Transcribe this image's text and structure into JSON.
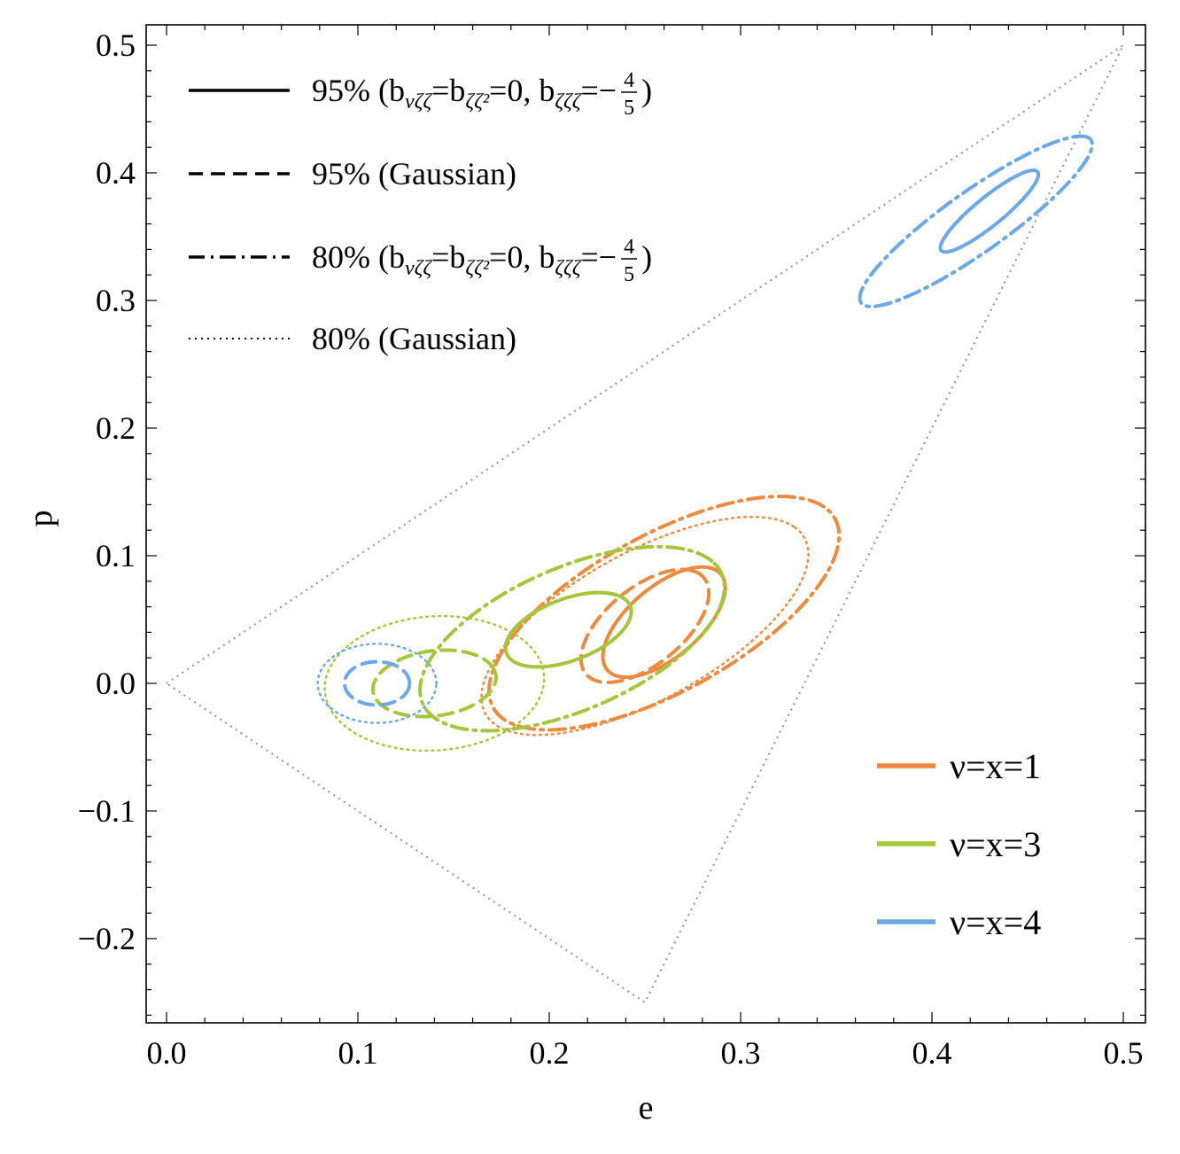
{
  "chart_data": {
    "type": "line",
    "title": "",
    "xlabel": "e",
    "ylabel": "p",
    "xlim": [
      -0.01,
      0.51
    ],
    "ylim": [
      -0.26,
      0.515
    ],
    "grid": false,
    "xticks": [
      0.0,
      0.1,
      0.2,
      0.3,
      0.4,
      0.5
    ],
    "xtick_labels": [
      "0.0",
      "0.1",
      "0.2",
      "0.3",
      "0.4",
      "0.5"
    ],
    "yticks": [
      -0.2,
      -0.1,
      0.0,
      0.1,
      0.2,
      0.3,
      0.4,
      0.5
    ],
    "ytick_labels": [
      "−0.2",
      "−0.1",
      "0.0",
      "0.1",
      "0.2",
      "0.3",
      "0.4",
      "0.5"
    ],
    "boundary": {
      "name": "allowed region",
      "style": "dotted",
      "color": "#999999",
      "points": [
        [
          0.0,
          0.0
        ],
        [
          0.5,
          0.5
        ],
        [
          0.25,
          -0.25
        ],
        [
          0.0,
          0.0
        ]
      ]
    },
    "style_legend": {
      "position": "top-left",
      "entries": [
        {
          "style": "solid",
          "prefix": "95% (b",
          "sub1": "νζζ",
          "mid": "=b",
          "sub2": "ζζ²",
          "mid2": "=0, b",
          "sub3": "ζζζ",
          "suffix": "=−",
          "frac_num": "4",
          "frac_den": "5",
          "close": ")"
        },
        {
          "style": "dashed",
          "text": "95% (Gaussian)"
        },
        {
          "style": "dashdot",
          "prefix": "80% (b",
          "sub1": "νζζ",
          "mid": "=b",
          "sub2": "ζζ²",
          "mid2": "=0, b",
          "sub3": "ζζζ",
          "suffix": "=−",
          "frac_num": "4",
          "frac_den": "5",
          "close": ")"
        },
        {
          "style": "dotted",
          "text": "80% (Gaussian)"
        }
      ]
    },
    "color_legend": {
      "position": "bottom-right",
      "entries": [
        {
          "label": "ν=x=1",
          "color": "#ED8A3F"
        },
        {
          "label": "ν=x=3",
          "color": "#A5C63B"
        },
        {
          "label": "ν=x=4",
          "color": "#6AA8E8"
        }
      ]
    },
    "series": [
      {
        "name": "ν=x=1 95% non-Gaussian",
        "color": "#ED8A3F",
        "style": "solid",
        "ellipse": {
          "ce": 0.26,
          "cp": 0.048,
          "a": 0.049,
          "b": 0.022,
          "angle_deg": 58
        }
      },
      {
        "name": "ν=x=1 95% Gaussian",
        "color": "#ED8A3F",
        "style": "dashed",
        "ellipse": {
          "ce": 0.25,
          "cp": 0.045,
          "a": 0.05,
          "b": 0.024,
          "angle_deg": 58
        }
      },
      {
        "name": "ν=x=1 80% non-Gaussian",
        "color": "#ED8A3F",
        "style": "dashdot",
        "ellipse": {
          "ce": 0.26,
          "cp": 0.055,
          "a": 0.118,
          "b": 0.053,
          "angle_deg": 45
        }
      },
      {
        "name": "ν=x=1 80% Gaussian",
        "color": "#ED8A3F",
        "style": "dotted",
        "ellipse": {
          "ce": 0.25,
          "cp": 0.045,
          "a": 0.11,
          "b": 0.05,
          "angle_deg": 45
        }
      },
      {
        "name": "ν=x=3 95% non-Gaussian",
        "color": "#A5C63B",
        "style": "solid",
        "ellipse": {
          "ce": 0.21,
          "cp": 0.042,
          "a": 0.038,
          "b": 0.022,
          "angle_deg": 38
        }
      },
      {
        "name": "ν=x=3 95% Gaussian",
        "color": "#A5C63B",
        "style": "dashed",
        "ellipse": {
          "ce": 0.14,
          "cp": 0.0,
          "a": 0.033,
          "b": 0.025,
          "angle_deg": 20
        }
      },
      {
        "name": "ν=x=3 80% non-Gaussian",
        "color": "#A5C63B",
        "style": "dashdot",
        "ellipse": {
          "ce": 0.212,
          "cp": 0.035,
          "a": 0.095,
          "b": 0.05,
          "angle_deg": 40
        }
      },
      {
        "name": "ν=x=3 80% Gaussian",
        "color": "#A5C63B",
        "style": "dotted",
        "ellipse": {
          "ce": 0.14,
          "cp": 0.0,
          "a": 0.058,
          "b": 0.052,
          "angle_deg": 20
        }
      },
      {
        "name": "ν=x=4 95% non-Gaussian",
        "color": "#6AA8E8",
        "style": "solid",
        "ellipse": {
          "ce": 0.43,
          "cp": 0.37,
          "a": 0.04,
          "b": 0.009,
          "angle_deg": 52
        }
      },
      {
        "name": "ν=x=4 95% Gaussian",
        "color": "#6AA8E8",
        "style": "dashed",
        "ellipse": {
          "ce": 0.11,
          "cp": 0.0,
          "a": 0.017,
          "b": 0.017,
          "angle_deg": 0
        }
      },
      {
        "name": "ν=x=4 80% non-Gaussian",
        "color": "#6AA8E8",
        "style": "dashdot",
        "ellipse": {
          "ce": 0.423,
          "cp": 0.362,
          "a": 0.088,
          "b": 0.02,
          "angle_deg": 48
        }
      },
      {
        "name": "ν=x=4 80% Gaussian",
        "color": "#6AA8E8",
        "style": "dotted",
        "ellipse": {
          "ce": 0.11,
          "cp": 0.0,
          "a": 0.031,
          "b": 0.031,
          "angle_deg": 0
        }
      }
    ]
  }
}
